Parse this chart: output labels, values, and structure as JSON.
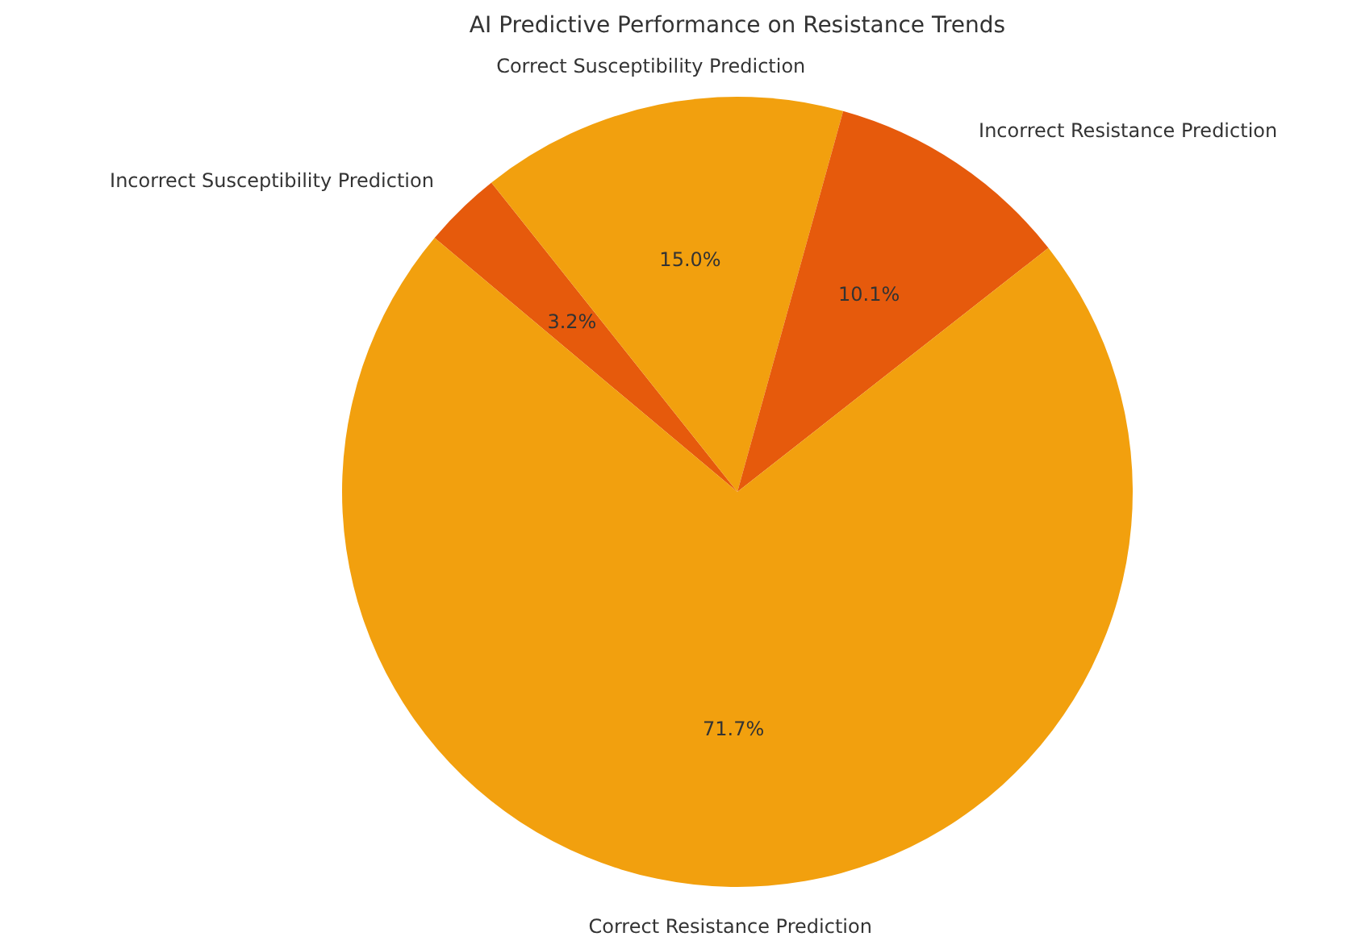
{
  "chart_data": {
    "type": "pie",
    "title": "AI Predictive Performance on Resistance Trends",
    "categories": [
      "Incorrect Susceptibility Prediction",
      "Correct Susceptibility Prediction",
      "Incorrect Resistance Prediction",
      "Correct Resistance Prediction"
    ],
    "values": [
      3.2,
      15.0,
      10.1,
      71.7
    ],
    "colors": [
      "#e65a0c",
      "#f2a00e",
      "#e65a0c",
      "#f2a00e"
    ],
    "value_labels": [
      "3.2%",
      "15.0%",
      "10.1%",
      "71.7%"
    ]
  }
}
